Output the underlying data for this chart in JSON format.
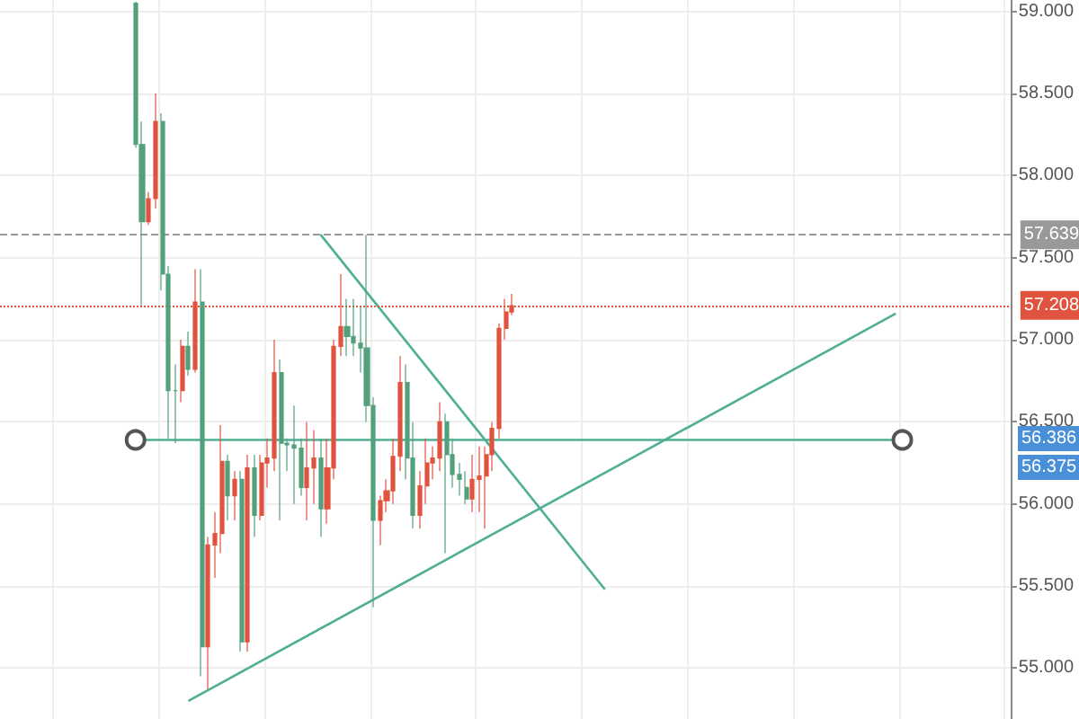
{
  "chart_data": {
    "type": "candlestick",
    "categories": [
      null,
      null,
      null,
      null,
      null,
      null,
      null,
      null,
      null,
      null,
      null,
      null,
      null,
      null,
      null,
      null,
      null,
      null,
      null,
      null,
      null,
      null,
      null,
      null,
      null,
      null,
      null,
      null,
      null,
      null,
      null,
      null,
      null,
      null,
      null,
      null,
      null,
      null,
      null,
      null,
      null,
      null,
      null,
      null,
      null,
      null,
      null,
      null,
      null,
      null,
      null,
      null,
      null,
      null,
      null,
      null,
      null,
      null,
      null,
      null,
      null,
      null,
      null,
      null,
      null,
      null,
      null,
      null,
      null,
      null,
      null,
      null,
      null,
      null,
      null,
      null,
      null,
      null,
      null,
      null,
      null,
      null,
      null,
      null,
      null,
      null,
      null,
      null,
      null,
      null,
      null,
      null,
      null,
      null,
      null,
      null,
      null,
      null,
      null,
      null,
      null,
      null,
      null,
      null,
      null,
      null,
      null,
      null,
      null,
      null,
      null,
      null,
      null,
      null,
      null,
      null,
      null,
      null,
      null,
      null,
      null,
      null,
      null,
      null,
      null,
      null,
      null,
      null,
      null,
      null,
      null,
      null,
      null,
      null,
      null,
      null,
      null,
      null,
      null,
      null,
      null,
      null,
      null,
      null,
      null,
      null,
      null,
      null,
      null,
      null,
      null,
      null,
      null
    ],
    "series": [
      {
        "colors": [
          null,
          null,
          null,
          null,
          null,
          null,
          null,
          null,
          null,
          null,
          null,
          null,
          null,
          null,
          null,
          null,
          null,
          null,
          null,
          null,
          "#53a07b",
          "#53a07b",
          "#e0533f",
          "#e0533f",
          "#53a07b",
          "#53a07b",
          "#53a07b",
          "#e0533f",
          "#53a07b",
          "#e0533f",
          "#53a07b",
          "#e0533f",
          "#e0533f",
          "#e0533f",
          "#53a07b",
          "#e0533f",
          "#53a07b",
          "#e0533f",
          "#53a07b",
          "#e0533f",
          "#e0533f",
          "#e0533f",
          "#53a07b",
          "#53a07b",
          "#53a07b",
          "#53a07b",
          "#e0533f",
          "#e0533f",
          "#53a07b",
          "#e0533f",
          "#e0533f",
          "#e0533f",
          "#53a07b",
          "#53a07b",
          "#53a07b",
          "#53a07b",
          "#53a07b",
          "#e0533f",
          "#e0533f",
          "#e0533f",
          "#e0533f",
          "#53a07b",
          "#53a07b",
          "#e0533f",
          "#e0533f",
          "#e0533f",
          "#e0533f",
          "#53a07b",
          "#53a07b",
          "#53a07b",
          "#53a07b",
          "#e0533f",
          "#e0533f",
          "#e0533f",
          "#e0533f",
          "#e0533f",
          "#e0533f",
          "#e0533f",
          null,
          null,
          null,
          null,
          null,
          null,
          null,
          null,
          null,
          null,
          null,
          null,
          null,
          null,
          null,
          null,
          null,
          null,
          null,
          null,
          null,
          null,
          null,
          null,
          null,
          null,
          null,
          null,
          null,
          null,
          null,
          null,
          null,
          null,
          null,
          null,
          null,
          null,
          null,
          null,
          null,
          null,
          null,
          null,
          null,
          null,
          null,
          null,
          null,
          null,
          null,
          null,
          null,
          null,
          null,
          null,
          null,
          null,
          null,
          null,
          null,
          null,
          null,
          null,
          null,
          null,
          null,
          null,
          null,
          null,
          null,
          null,
          null,
          null,
          null
        ],
        "ohlc": [
          null,
          null,
          null,
          null,
          null,
          null,
          null,
          null,
          null,
          null,
          null,
          null,
          null,
          null,
          null,
          null,
          null,
          null,
          null,
          null,
          [
            59.05,
            59.06,
            58.17,
            58.19
          ],
          [
            58.19,
            58.33,
            57.21,
            57.72
          ],
          [
            57.72,
            57.9,
            57.7,
            57.86
          ],
          [
            57.86,
            58.5,
            57.8,
            58.33
          ],
          [
            58.33,
            58.38,
            57.3,
            57.4
          ],
          [
            57.4,
            57.45,
            56.4,
            56.69
          ],
          [
            56.69,
            56.85,
            56.37,
            56.69
          ],
          [
            56.69,
            57,
            56.62,
            56.96
          ],
          [
            56.96,
            57.05,
            56.78,
            56.82
          ],
          [
            56.82,
            57.43,
            56.8,
            57.23
          ],
          [
            57.23,
            57.43,
            54.95,
            55.13
          ],
          [
            55.13,
            55.8,
            54.87,
            55.75
          ],
          [
            55.75,
            55.95,
            55.55,
            55.82
          ],
          [
            55.82,
            56.48,
            55.7,
            56.26
          ],
          [
            56.26,
            56.3,
            55.9,
            56.05
          ],
          [
            56.05,
            56.2,
            55.9,
            56.15
          ],
          [
            56.15,
            56.2,
            55.1,
            55.16
          ],
          [
            55.16,
            56.3,
            55.1,
            56.22
          ],
          [
            56.22,
            56.3,
            55.8,
            55.93
          ],
          [
            55.93,
            56.3,
            55.9,
            56.25
          ],
          [
            56.25,
            56.4,
            56.1,
            56.28
          ],
          [
            56.28,
            57,
            56.2,
            56.8
          ],
          [
            56.8,
            56.88,
            55.9,
            56.37
          ],
          [
            56.37,
            56.4,
            56.2,
            56.36
          ],
          [
            56.36,
            56.6,
            56,
            56.34
          ],
          [
            56.34,
            56.4,
            56.05,
            56.1
          ],
          [
            56.1,
            56.5,
            55.9,
            56.22
          ],
          [
            56.22,
            56.45,
            56,
            56.28
          ],
          [
            56.28,
            56.4,
            55.8,
            55.97
          ],
          [
            55.97,
            56.4,
            55.88,
            56.22
          ],
          [
            56.22,
            57,
            56.15,
            56.96
          ],
          [
            56.96,
            57.4,
            56.9,
            57.08
          ],
          [
            57.08,
            57.25,
            56.9,
            57.02
          ],
          [
            57.02,
            57.25,
            56.9,
            56.98
          ],
          [
            56.98,
            57.2,
            56.8,
            56.95
          ],
          [
            56.95,
            57.639,
            56.5,
            56.6
          ],
          [
            56.6,
            56.65,
            55.37,
            55.9
          ],
          [
            55.9,
            56.05,
            55.75,
            56.02
          ],
          [
            56.02,
            56.15,
            55.95,
            56.08
          ],
          [
            56.08,
            56.4,
            56,
            56.29
          ],
          [
            56.29,
            56.9,
            56.2,
            56.74
          ],
          [
            56.74,
            56.85,
            56.15,
            56.28
          ],
          [
            56.28,
            56.5,
            55.85,
            55.93
          ],
          [
            55.93,
            56.2,
            55.85,
            56.11
          ],
          [
            56.11,
            56.4,
            56,
            56.25
          ],
          [
            56.25,
            56.35,
            56.15,
            56.28
          ],
          [
            56.28,
            56.62,
            56.2,
            56.5
          ],
          [
            56.5,
            56.55,
            55.7,
            56.3
          ],
          [
            56.3,
            56.4,
            56.1,
            56.18
          ],
          [
            56.18,
            56.25,
            56.05,
            56.15
          ],
          [
            56.1,
            56.2,
            56,
            56.03
          ],
          [
            56.03,
            56.3,
            55.95,
            56.15
          ],
          [
            56.15,
            56.35,
            55.95,
            56.17
          ],
          [
            56.17,
            56.35,
            55.85,
            56.3
          ],
          [
            56.3,
            56.5,
            56.2,
            56.46
          ],
          [
            56.46,
            57.1,
            56.4,
            57.07
          ],
          [
            57.07,
            57.25,
            57,
            57.17
          ],
          [
            57.17,
            57.28,
            57.15,
            57.208
          ],
          null,
          null,
          null,
          null,
          null,
          null,
          null,
          null,
          null,
          null,
          null,
          null,
          null,
          null,
          null,
          null,
          null,
          null,
          null,
          null,
          null,
          null,
          null,
          null,
          null,
          null,
          null,
          null,
          null,
          null,
          null,
          null,
          null,
          null,
          null,
          null,
          null,
          null,
          null,
          null,
          null,
          null,
          null,
          null,
          null,
          null,
          null,
          null,
          null,
          null,
          null,
          null,
          null,
          null,
          null,
          null,
          null,
          null,
          null,
          null,
          null,
          null,
          null,
          null,
          null,
          null,
          null,
          null,
          null,
          null,
          null,
          null,
          null,
          null,
          null
        ]
      },
      {
        "type": "line",
        "color": "#4fae94",
        "marker": "circle",
        "values": [
          null,
          null,
          null,
          null,
          null,
          null,
          null,
          null,
          null,
          null,
          null,
          null,
          null,
          null,
          null,
          null,
          null,
          null,
          null,
          null,
          56.39,
          null,
          null,
          null,
          null,
          null,
          null,
          null,
          null,
          null,
          null,
          null,
          null,
          null,
          null,
          null,
          null,
          null,
          null,
          null,
          null,
          null,
          null,
          null,
          null,
          null,
          null,
          null,
          null,
          null,
          null,
          null,
          null,
          null,
          null,
          null,
          null,
          null,
          null,
          null,
          null,
          null,
          null,
          null,
          null,
          null,
          null,
          null,
          null,
          null,
          null,
          null,
          null,
          null,
          null,
          null,
          null,
          null,
          null,
          null,
          null,
          null,
          null,
          null,
          null,
          null,
          null,
          null,
          null,
          null,
          null,
          null,
          null,
          null,
          null,
          null,
          null,
          null,
          null,
          null,
          null,
          null,
          null,
          null,
          null,
          null,
          null,
          null,
          null,
          null,
          null,
          null,
          null,
          null,
          null,
          null,
          null,
          null,
          null,
          null,
          null,
          null,
          null,
          null,
          null,
          null,
          null,
          null,
          null,
          null,
          null,
          null,
          null,
          null,
          null,
          null,
          56.39,
          null,
          null,
          null,
          null,
          null,
          null,
          null,
          null,
          null,
          null,
          null,
          null,
          null,
          null,
          null,
          null
        ]
      },
      {
        "type": "line",
        "color": "#4fae94",
        "marker": "none",
        "values": [
          null,
          null,
          null,
          null,
          null,
          null,
          null,
          null,
          null,
          null,
          null,
          null,
          null,
          null,
          null,
          null,
          null,
          null,
          null,
          null,
          null,
          null,
          null,
          null,
          null,
          null,
          null,
          null,
          null,
          null,
          null,
          null,
          null,
          null,
          null,
          null,
          null,
          null,
          null,
          null,
          null,
          null,
          null,
          null,
          null,
          null,
          null,
          null,
          57.64,
          null,
          null,
          null,
          null,
          null,
          null,
          null,
          null,
          null,
          null,
          null,
          null,
          null,
          null,
          null,
          null,
          null,
          null,
          null,
          null,
          null,
          null,
          null,
          null,
          null,
          null,
          null,
          null,
          null,
          null,
          null,
          null,
          null,
          null,
          null,
          null,
          null,
          null,
          null,
          null,
          null,
          null,
          55.48,
          null,
          null,
          null,
          null,
          null,
          null,
          null,
          null,
          null,
          null,
          null,
          null,
          null,
          null,
          null,
          null,
          null,
          null,
          null,
          null,
          null,
          null,
          null,
          null,
          null,
          null,
          null,
          null,
          null,
          null,
          null,
          null,
          null,
          null,
          null,
          null,
          null,
          null,
          null,
          null,
          null,
          null,
          null,
          null,
          null,
          null,
          null,
          null,
          null,
          null,
          null,
          null,
          null,
          null,
          null,
          null,
          null,
          null,
          null,
          null,
          null
        ]
      },
      {
        "type": "line",
        "color": "#4fae94",
        "marker": "none",
        "values": [
          null,
          null,
          null,
          null,
          null,
          null,
          null,
          null,
          null,
          null,
          null,
          null,
          null,
          null,
          null,
          null,
          null,
          null,
          null,
          null,
          null,
          null,
          null,
          null,
          null,
          null,
          null,
          null,
          54.8,
          null,
          null,
          null,
          null,
          null,
          null,
          null,
          null,
          null,
          null,
          null,
          null,
          null,
          null,
          null,
          null,
          null,
          null,
          null,
          null,
          null,
          null,
          null,
          null,
          null,
          null,
          null,
          null,
          null,
          null,
          null,
          null,
          null,
          null,
          null,
          null,
          null,
          null,
          null,
          null,
          null,
          null,
          null,
          null,
          null,
          null,
          null,
          null,
          null,
          null,
          null,
          null,
          null,
          null,
          null,
          null,
          null,
          null,
          null,
          null,
          null,
          null,
          null,
          null,
          null,
          null,
          null,
          null,
          null,
          null,
          null,
          null,
          null,
          null,
          null,
          null,
          null,
          null,
          null,
          null,
          null,
          null,
          null,
          null,
          null,
          null,
          null,
          null,
          null,
          null,
          null,
          null,
          null,
          null,
          null,
          null,
          null,
          null,
          null,
          null,
          null,
          null,
          null,
          null,
          null,
          null,
          57.16,
          null,
          null,
          null,
          null,
          null,
          null,
          null,
          null,
          null,
          null,
          null,
          null,
          null,
          null,
          null,
          null,
          null
        ]
      }
    ],
    "ylim": [
      54.69,
      59.07
    ],
    "yticks": [
      {
        "value": 55,
        "label": "55.000"
      },
      {
        "value": 55.5,
        "label": "55.500"
      },
      {
        "value": 56,
        "label": "56.000"
      },
      {
        "value": 56.5,
        "label": "56.500"
      },
      {
        "value": 57,
        "label": "57.000"
      },
      {
        "value": 57.5,
        "label": "57.500"
      },
      {
        "value": 58,
        "label": "58.000"
      },
      {
        "value": 58.5,
        "label": "58.500"
      },
      {
        "value": 59,
        "label": "59.000"
      }
    ],
    "ref_lines": [
      {
        "axis": "y",
        "value": 57.639,
        "label": "57.639",
        "color": "#999999",
        "line_style": "dashed"
      },
      {
        "axis": "y",
        "value": 57.208,
        "label": "57.208",
        "color": "#e0533f",
        "line_style": "dotted"
      }
    ],
    "annotations": [
      "56.386",
      "56.375"
    ],
    "grid": true,
    "tick_labels": "y"
  }
}
